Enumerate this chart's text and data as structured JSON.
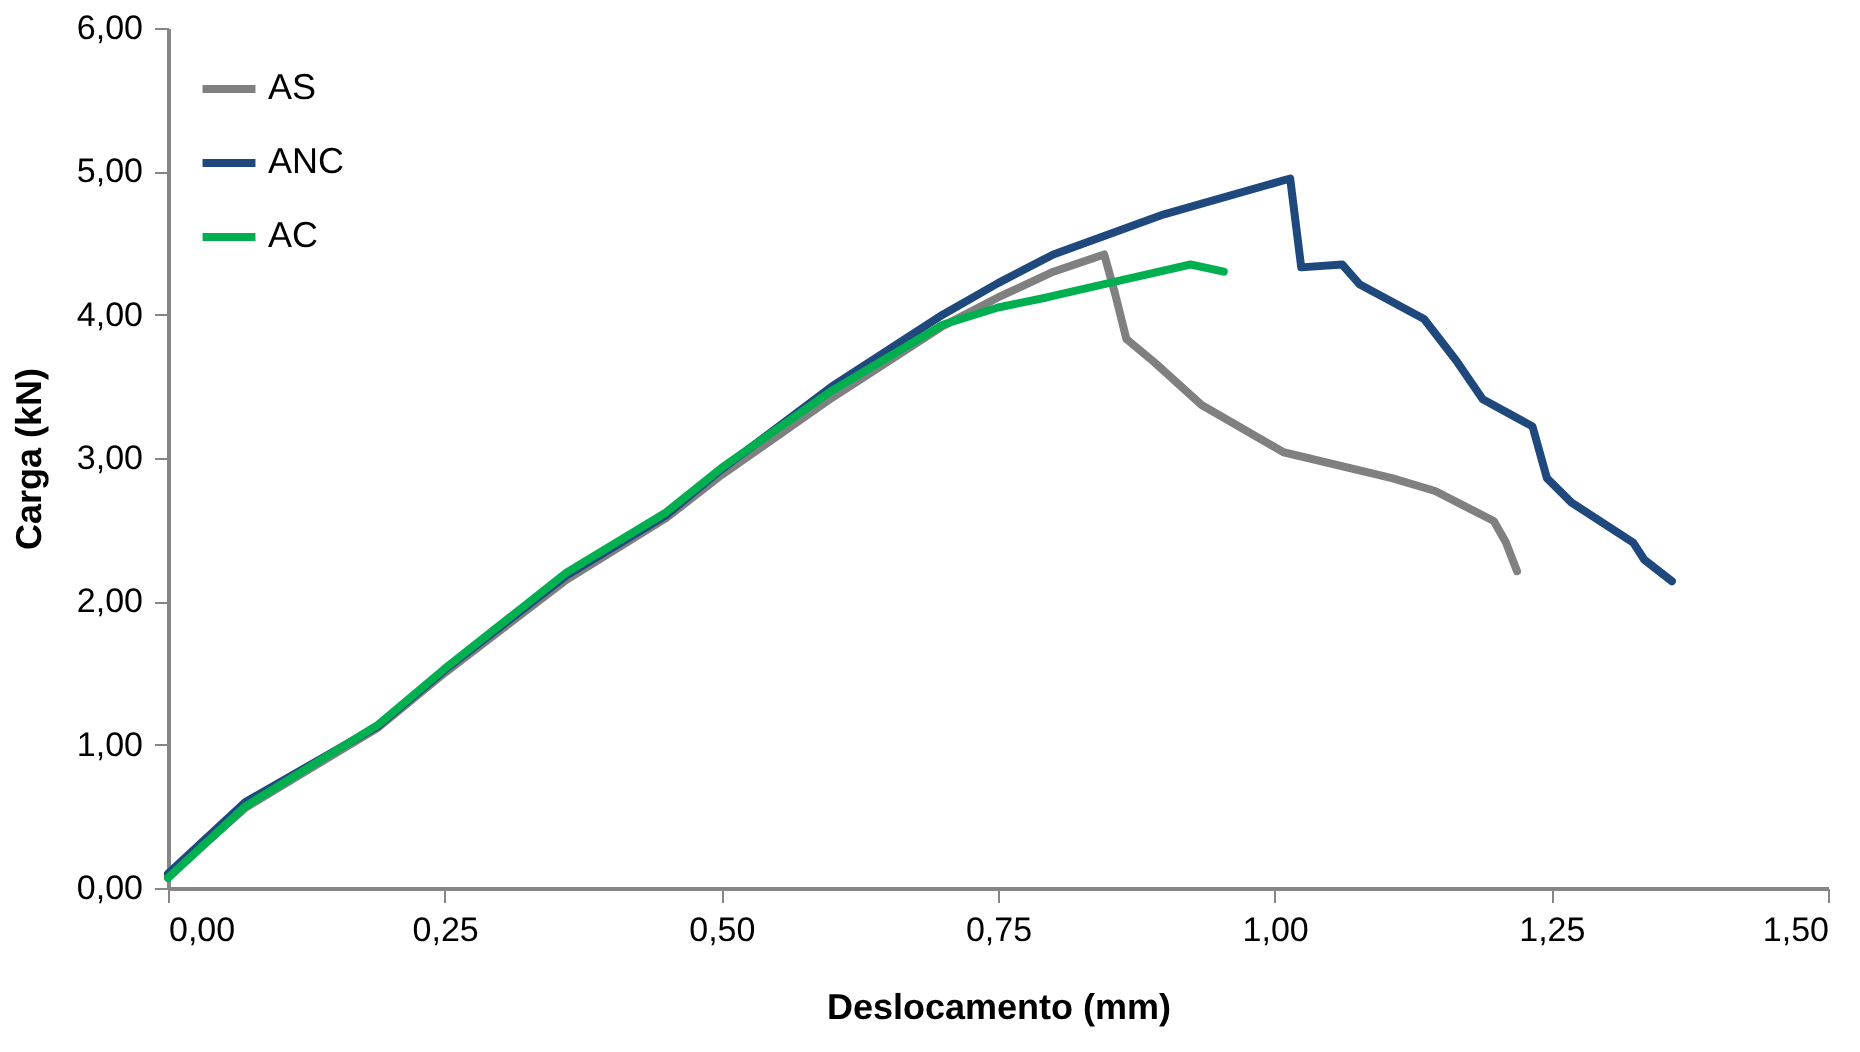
{
  "chart_data": {
    "type": "line",
    "xlabel": "Deslocamento (mm)",
    "ylabel": "Carga (kN)",
    "xlim": [
      0,
      1.5
    ],
    "ylim": [
      0,
      6
    ],
    "xticks": [
      {
        "value": 0,
        "label": "0,00"
      },
      {
        "value": 0.25,
        "label": "0,25"
      },
      {
        "value": 0.5,
        "label": "0,50"
      },
      {
        "value": 0.75,
        "label": "0,75"
      },
      {
        "value": 1,
        "label": "1,00"
      },
      {
        "value": 1.25,
        "label": "1,25"
      },
      {
        "value": 1.5,
        "label": "1,50"
      }
    ],
    "yticks": [
      {
        "value": 0,
        "label": "0,00"
      },
      {
        "value": 1,
        "label": "1,00"
      },
      {
        "value": 2,
        "label": "2,00"
      },
      {
        "value": 3,
        "label": "3,00"
      },
      {
        "value": 4,
        "label": "4,00"
      },
      {
        "value": 5,
        "label": "5,00"
      },
      {
        "value": 6,
        "label": "6,00"
      }
    ],
    "grid": false,
    "legend": "top left",
    "marker": "none",
    "line_style": "solid",
    "series": [
      {
        "name": "AS",
        "color": "#808080",
        "x": [
          0,
          0.07,
          0.19,
          0.25,
          0.36,
          0.45,
          0.5,
          0.6,
          0.7,
          0.75,
          0.8,
          0.846,
          0.856,
          0.866,
          0.891,
          0.934,
          1.008,
          1.106,
          1.145,
          1.198,
          1.209,
          1.219
        ],
        "values": [
          0.08,
          0.56,
          1.12,
          1.5,
          2.15,
          2.58,
          2.88,
          3.42,
          3.92,
          4.12,
          4.3,
          4.42,
          4.14,
          3.83,
          3.67,
          3.37,
          3.04,
          2.86,
          2.77,
          2.56,
          2.41,
          2.21
        ]
      },
      {
        "name": "ANC",
        "color": "#1f497d",
        "x": [
          0,
          0.07,
          0.19,
          0.25,
          0.36,
          0.45,
          0.5,
          0.6,
          0.7,
          0.75,
          0.8,
          0.9,
          1.014,
          1.024,
          1.061,
          1.077,
          1.135,
          1.164,
          1.188,
          1.233,
          1.246,
          1.268,
          1.324,
          1.334,
          1.359
        ],
        "values": [
          0.1,
          0.6,
          1.13,
          1.52,
          2.18,
          2.6,
          2.92,
          3.5,
          4.0,
          4.22,
          4.42,
          4.7,
          4.95,
          4.33,
          4.35,
          4.21,
          3.97,
          3.68,
          3.41,
          3.22,
          2.86,
          2.69,
          2.41,
          2.29,
          2.14
        ]
      },
      {
        "name": "AC",
        "color": "#00b050",
        "x": [
          0,
          0.07,
          0.19,
          0.25,
          0.36,
          0.45,
          0.5,
          0.6,
          0.7,
          0.75,
          0.794,
          0.85,
          0.924,
          0.954
        ],
        "values": [
          0.07,
          0.57,
          1.14,
          1.53,
          2.2,
          2.62,
          2.93,
          3.47,
          3.93,
          4.05,
          4.12,
          4.22,
          4.35,
          4.3
        ]
      }
    ]
  }
}
